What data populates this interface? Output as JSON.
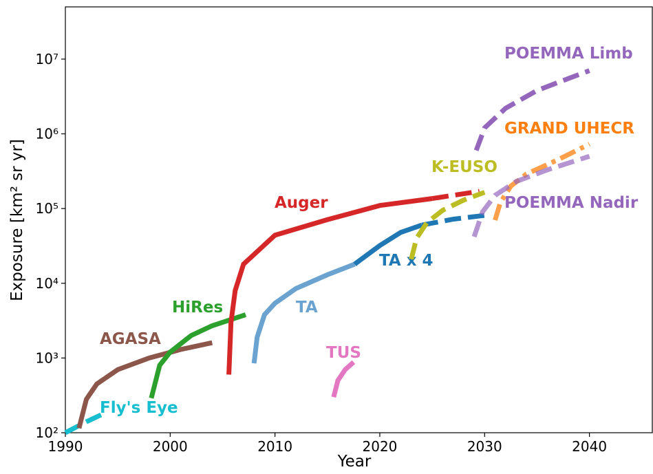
{
  "chart_data": {
    "type": "line",
    "x_label": "Year",
    "y_label": "Exposure [km² sr yr]",
    "log_y": true,
    "xlim": [
      1990,
      2046
    ],
    "ylim": [
      100,
      50000000
    ],
    "xticks": [
      1990,
      2000,
      2010,
      2020,
      2030,
      2040
    ],
    "yticks": [
      {
        "value": 100,
        "label": "10²"
      },
      {
        "value": 1000,
        "label": "10³"
      },
      {
        "value": 10000,
        "label": "10⁴"
      },
      {
        "value": 100000,
        "label": "10⁵"
      },
      {
        "value": 1000000,
        "label": "10⁶"
      },
      {
        "value": 10000000,
        "label": "10⁷"
      }
    ],
    "series": [
      {
        "name": "Fly's Eye",
        "color": "#17becf",
        "linestyle": "dashed",
        "x": [
          1990,
          1992,
          1994
        ],
        "values": [
          100,
          140,
          190
        ]
      },
      {
        "name": "AGASA",
        "color": "#8c564b",
        "linestyle": "solid",
        "x": [
          1991.3,
          1992,
          1993,
          1995,
          1998,
          2001,
          2004
        ],
        "values": [
          115,
          280,
          450,
          700,
          1000,
          1300,
          1600
        ]
      },
      {
        "name": "HiRes",
        "color": "#2ca02c",
        "linestyle": "solid",
        "x": [
          1998.2,
          1999,
          2000,
          2002,
          2004,
          2007.2
        ],
        "values": [
          290,
          800,
          1200,
          2000,
          2700,
          3800
        ]
      },
      {
        "name": "Auger",
        "color": "#d62728",
        "linestyle": "solid",
        "dash_after": 2025,
        "x": [
          2005.6,
          2005.8,
          2006.2,
          2007,
          2010,
          2015,
          2020,
          2025,
          2029.5
        ],
        "values": [
          600,
          3000,
          8000,
          18000,
          44000,
          71000,
          110000,
          136000,
          170000
        ]
      },
      {
        "name": "TA",
        "color": "#6aa3cf",
        "linestyle": "solid",
        "x": [
          2008,
          2008.3,
          2009,
          2010,
          2012,
          2015,
          2017.6
        ],
        "values": [
          850,
          1900,
          3800,
          5400,
          8500,
          13000,
          18000
        ]
      },
      {
        "name": "TA x 4",
        "color": "#1f77b4",
        "linestyle": "solid",
        "dash_after": 2024,
        "x": [
          2017.6,
          2020,
          2022,
          2024,
          2027,
          2030
        ],
        "values": [
          18000,
          32000,
          48000,
          60000,
          72000,
          81000
        ]
      },
      {
        "name": "TUS",
        "color": "#e377c2",
        "linestyle": "solid",
        "x": [
          2015.6,
          2016,
          2016.7,
          2017.5
        ],
        "values": [
          300,
          500,
          700,
          880
        ]
      },
      {
        "name": "K-EUSO",
        "color": "#bcbd22",
        "linestyle": "dashed",
        "x": [
          2023,
          2023.5,
          2024.5,
          2026,
          2028,
          2030
        ],
        "values": [
          21000,
          40000,
          65000,
          95000,
          130000,
          165000
        ]
      },
      {
        "name": "POEMMA Limb",
        "color": "#9467bd",
        "linestyle": "dashed",
        "x": [
          2029.2,
          2030,
          2032,
          2035,
          2038,
          2040
        ],
        "values": [
          600000,
          1200000,
          2200000,
          3800000,
          5500000,
          7000000
        ]
      },
      {
        "name": "GRAND UHECR",
        "color": "#ff7f0e",
        "linestyle": "dashdot",
        "alpha": 0.75,
        "x": [
          2031,
          2031.5,
          2032.5,
          2034,
          2037,
          2040
        ],
        "values": [
          70000,
          120000,
          200000,
          290000,
          450000,
          730000
        ]
      },
      {
        "name": "POEMMA Nadir",
        "color": "#9467bd",
        "linestyle": "dashed",
        "alpha": 0.7,
        "x": [
          2029,
          2029.8,
          2031,
          2033,
          2036,
          2040
        ],
        "values": [
          42000,
          90000,
          150000,
          230000,
          330000,
          500000
        ]
      }
    ]
  }
}
